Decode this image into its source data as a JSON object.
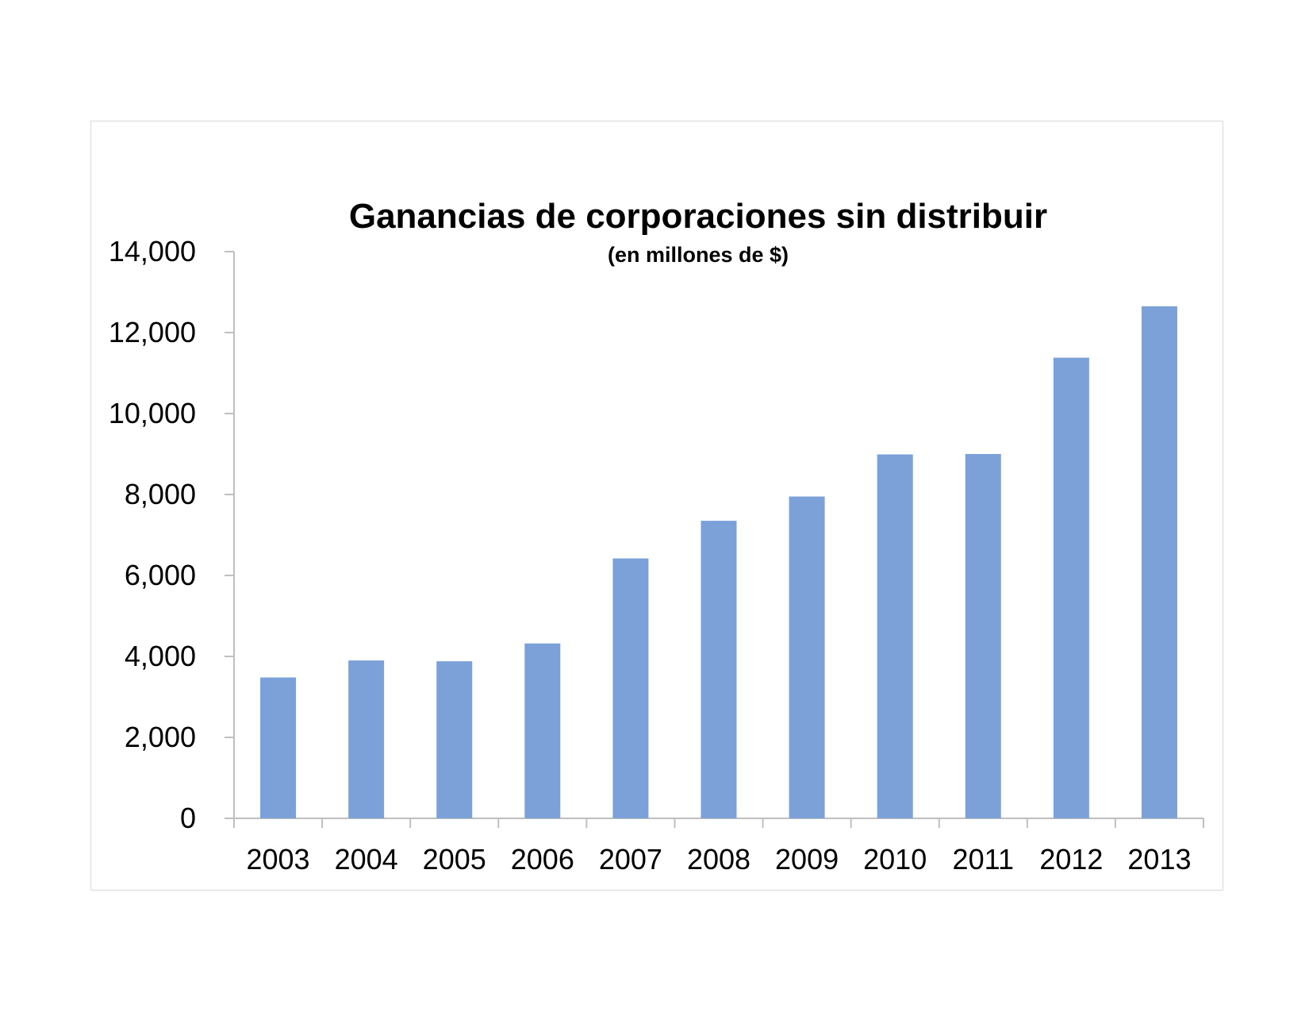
{
  "chart_data": {
    "type": "bar",
    "title": "Ganancias de corporaciones sin distribuir",
    "subtitle": "(en millones de $)",
    "categories": [
      "2003",
      "2004",
      "2005",
      "2006",
      "2007",
      "2008",
      "2009",
      "2010",
      "2011",
      "2012",
      "2013"
    ],
    "values": [
      3480,
      3900,
      3880,
      4320,
      6420,
      7350,
      7950,
      8990,
      9000,
      11380,
      12650
    ],
    "ylim": [
      0,
      14000
    ],
    "yticks": [
      0,
      2000,
      4000,
      6000,
      8000,
      10000,
      12000,
      14000
    ],
    "ytick_labels": [
      "0",
      "2,000",
      "4,000",
      "6,000",
      "8,000",
      "10,000",
      "12,000",
      "14,000"
    ],
    "bar_color": "#7ba1d8",
    "axis_color": "#bfbfbf",
    "grid": false,
    "legend": "none"
  }
}
